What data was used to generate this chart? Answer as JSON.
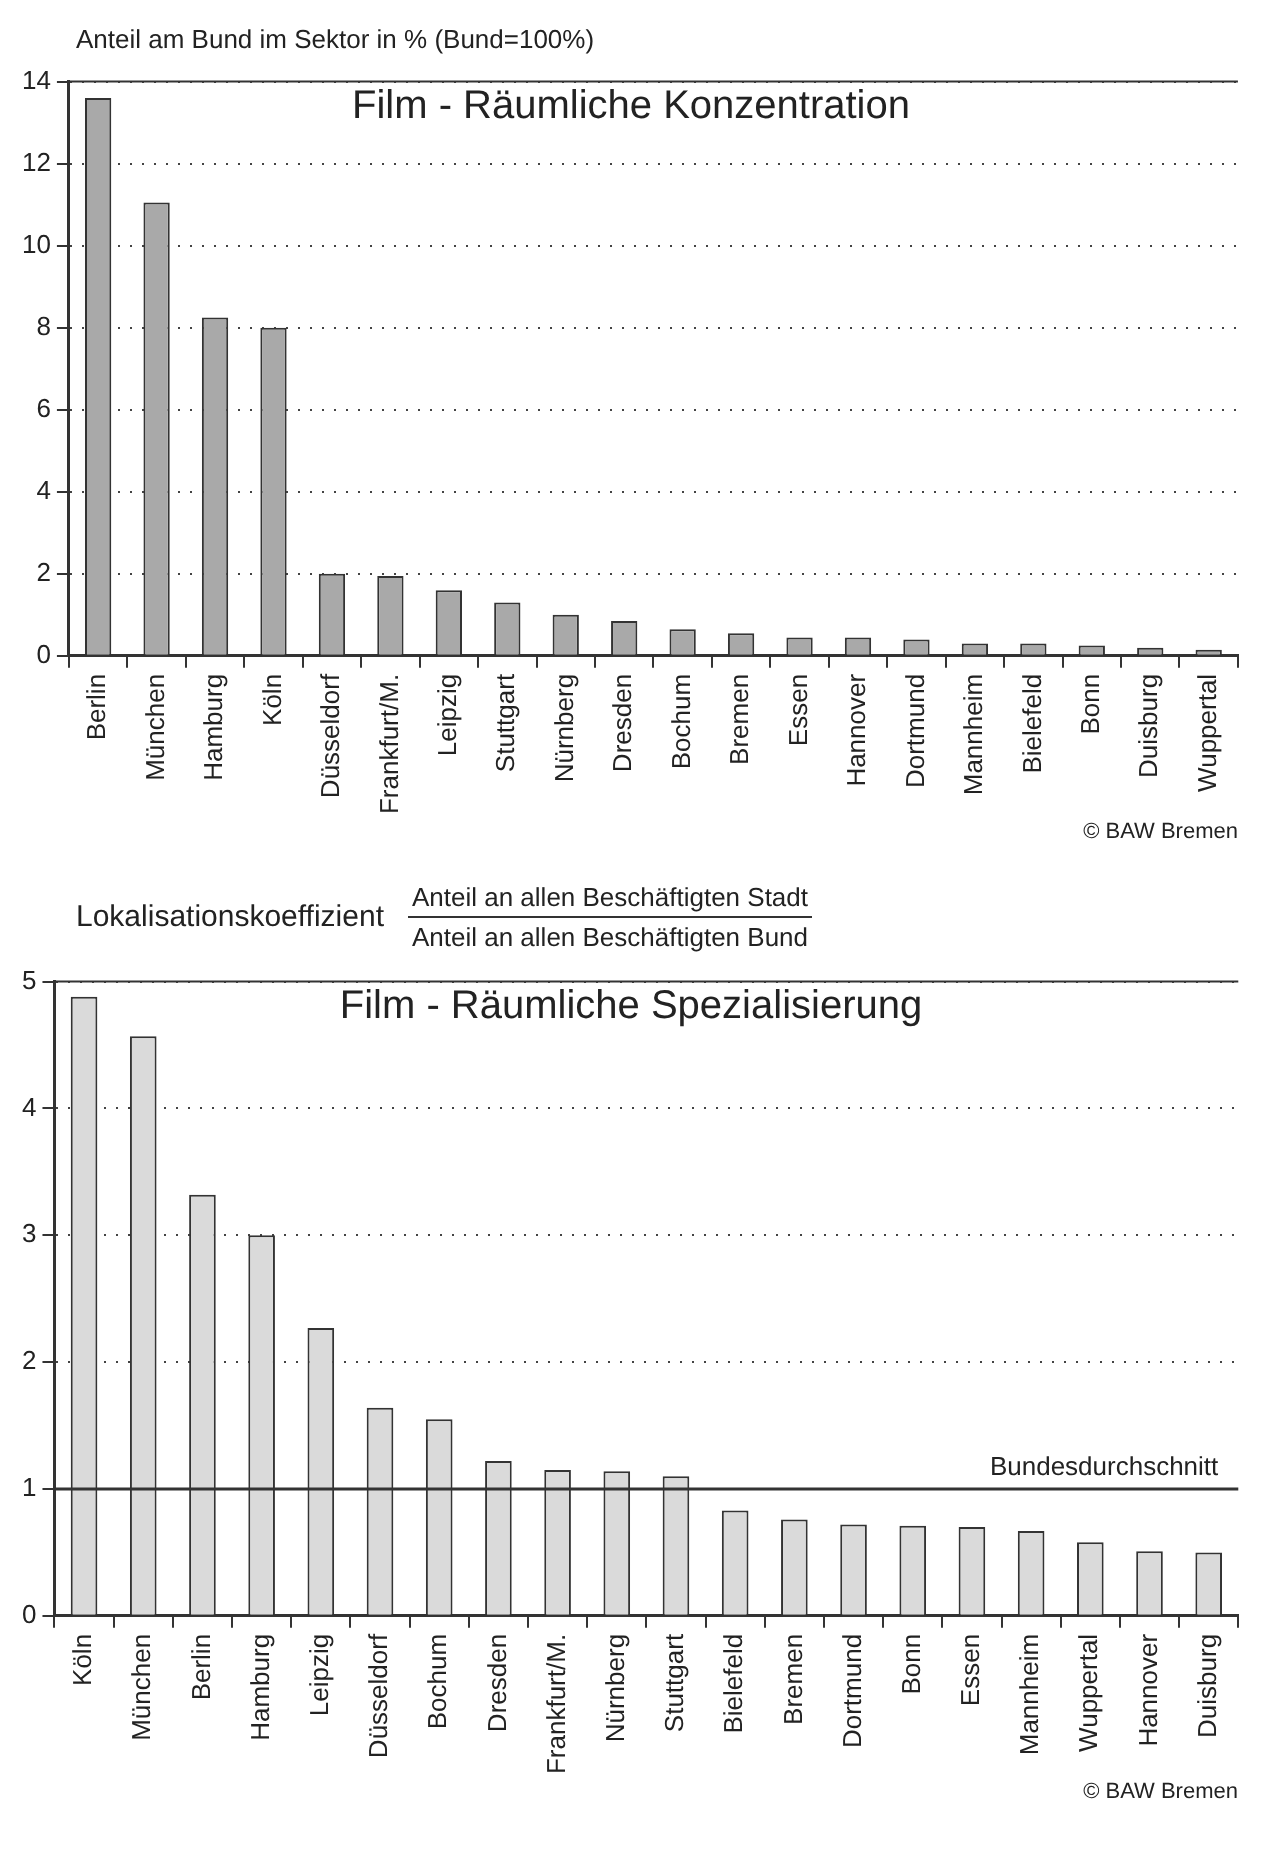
{
  "chart_data": [
    {
      "type": "bar",
      "title": "Film - Räumliche Konzentration",
      "ylabel": "Anteil am Bund im Sektor in % (Bund=100%)",
      "categories": [
        "Berlin",
        "München",
        "Hamburg",
        "Köln",
        "Düsseldorf",
        "Frankfurt/M.",
        "Leipzig",
        "Stuttgart",
        "Nürnberg",
        "Dresden",
        "Bochum",
        "Bremen",
        "Essen",
        "Hannover",
        "Dortmund",
        "Mannheim",
        "Bielefeld",
        "Bonn",
        "Duisburg",
        "Wuppertal"
      ],
      "values": [
        13.6,
        11.05,
        8.25,
        8.0,
        2.0,
        1.95,
        1.6,
        1.3,
        1.0,
        0.85,
        0.65,
        0.55,
        0.45,
        0.45,
        0.4,
        0.3,
        0.3,
        0.25,
        0.2,
        0.15
      ],
      "color": "#a9a9a9",
      "ylim": [
        0,
        14
      ],
      "yticks": [
        0,
        2,
        4,
        6,
        8,
        10,
        12,
        14
      ],
      "grid": "y",
      "legend": false,
      "annotations": [
        "© BAW Bremen"
      ]
    },
    {
      "type": "bar",
      "title": "Film - Räumliche Spezialisierung",
      "ylabel": "Lokalisationskoeffizient",
      "categories": [
        "Köln",
        "München",
        "Berlin",
        "Hamburg",
        "Leipzig",
        "Düsseldorf",
        "Bochum",
        "Dresden",
        "Frankfurt/M.",
        "Nürnberg",
        "Stuttgart",
        "Bielefeld",
        "Bremen",
        "Dortmund",
        "Bonn",
        "Essen",
        "Mannheim",
        "Wuppertal",
        "Hannover",
        "Duisburg"
      ],
      "values": [
        4.88,
        4.57,
        3.32,
        3.0,
        2.27,
        1.64,
        1.55,
        1.22,
        1.15,
        1.14,
        1.1,
        0.83,
        0.76,
        0.72,
        0.71,
        0.7,
        0.67,
        0.58,
        0.51,
        0.5
      ],
      "color": "#dadada",
      "ylim": [
        0,
        5
      ],
      "yticks": [
        0,
        1,
        2,
        3,
        4,
        5
      ],
      "grid": "y",
      "legend": false,
      "ref_lines": [
        {
          "axis": "y",
          "value": 1,
          "label": "Bundesdurchschnitt",
          "color": "#333333",
          "line_style": "solid"
        }
      ],
      "annotations": [
        "Anteil an allen Beschäftigten Stadt",
        "Anteil an allen Beschäftigten Bund",
        "© BAW Bremen"
      ]
    }
  ]
}
